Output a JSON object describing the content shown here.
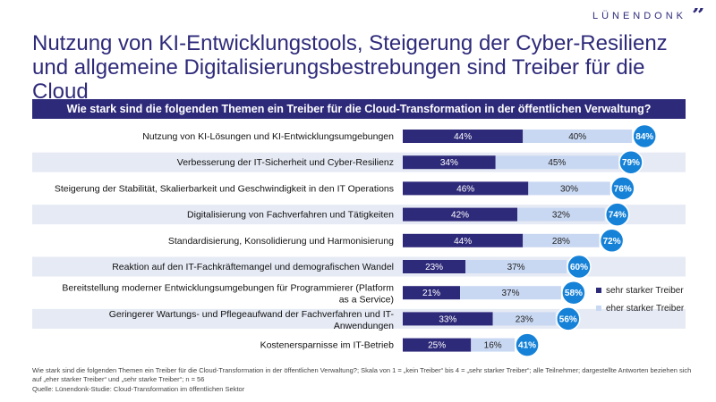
{
  "brand": {
    "logo_text": "LÜNENDONK",
    "logo_mark": "”"
  },
  "title": "Nutzung von KI-Entwicklungstools, Steigerung der Cyber-Resilienz und allgemeine Digitalisierungsbestrebungen sind Treiber für die Cloud",
  "footnote": "Wie stark sind die folgenden Themen ein Treiber für die Cloud-Transformation in der öffentlichen Verwaltung?; Skala von 1 = „kein Treiber“ bis 4 = „sehr starker Treiber“; alle Teilnehmer; dargestellte Antworten beziehen sich auf „eher starker Treiber“ und „sehr starke Treiber“; n = 56",
  "source": "Quelle: Lünendonk-Studie: Cloud-Transformation im öffentlichen Sektor",
  "colors": {
    "dark": "#2e2a7a",
    "light": "#c9d8f2",
    "band": "#e6eaf4",
    "total": "#1582d8"
  },
  "chart_data": {
    "type": "bar",
    "orientation": "horizontal",
    "stacked": true,
    "title": "Wie stark sind die folgenden Themen ein Treiber für die Cloud-Transformation in der öffentlichen Verwaltung?",
    "unit": "%",
    "categories": [
      "Nutzung von KI-Lösungen und KI-Entwicklungsumgebungen",
      "Verbesserung der IT-Sicherheit und Cyber-Resilienz",
      "Steigerung der Stabilität, Skalierbarkeit und Geschwindigkeit in den IT Operations",
      "Digitalisierung von Fachverfahren und Tätigkeiten",
      "Standardisierung, Konsolidierung und Harmonisierung",
      "Reaktion auf den IT-Fachkräftemangel und demografischen Wandel",
      "Bereitstellung moderner Entwicklungsumgebungen für Programmierer (Platform as a Service)",
      "Geringerer Wartungs- und Pflegeaufwand der Fachverfahren und IT-Anwendungen",
      "Kostenersparnisse im IT-Betrieb"
    ],
    "series": [
      {
        "name": "sehr starker Treiber",
        "values": [
          44,
          34,
          46,
          42,
          44,
          23,
          21,
          33,
          25
        ]
      },
      {
        "name": "eher starker Treiber",
        "values": [
          40,
          45,
          30,
          32,
          28,
          37,
          37,
          23,
          16
        ]
      }
    ],
    "totals": [
      84,
      79,
      76,
      74,
      72,
      60,
      58,
      56,
      41
    ],
    "xlim": [
      0,
      100
    ],
    "legend": "right"
  }
}
